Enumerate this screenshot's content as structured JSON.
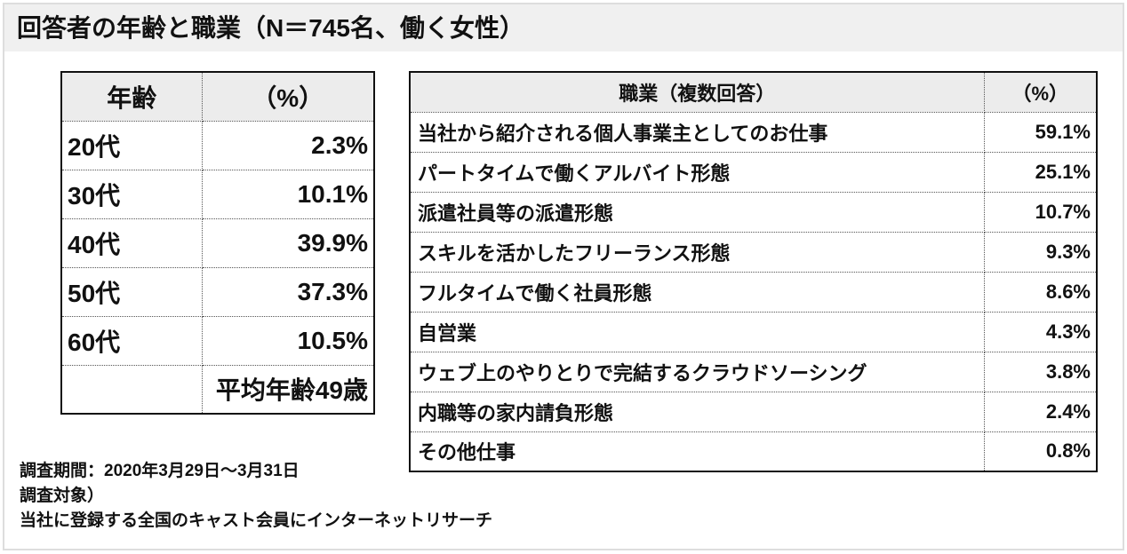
{
  "title": "回答者の年齢と職業（N＝745名、働く女性）",
  "age_table": {
    "headers": [
      "年齢",
      "（%）"
    ],
    "rows": [
      {
        "label": "20代",
        "value": "2.3%"
      },
      {
        "label": "30代",
        "value": "10.1%"
      },
      {
        "label": "40代",
        "value": "39.9%"
      },
      {
        "label": "50代",
        "value": "37.3%"
      },
      {
        "label": "60代",
        "value": "10.5%"
      }
    ],
    "average": "平均年齢49歳"
  },
  "job_table": {
    "headers": [
      "職業（複数回答）",
      "（%）"
    ],
    "rows": [
      {
        "label": "当社から紹介される個人事業主としてのお仕事",
        "value": "59.1%"
      },
      {
        "label": "パートタイムで働くアルバイト形態",
        "value": "25.1%"
      },
      {
        "label": "派遣社員等の派遣形態",
        "value": "10.7%"
      },
      {
        "label": "スキルを活かしたフリーランス形態",
        "value": "9.3%"
      },
      {
        "label": "フルタイムで働く社員形態",
        "value": "8.6%"
      },
      {
        "label": "自営業",
        "value": "4.3%"
      },
      {
        "label": "ウェブ上のやりとりで完結するクラウドソーシング",
        "value": "3.8%"
      },
      {
        "label": "内職等の家内請負形態",
        "value": "2.4%"
      },
      {
        "label": "その他仕事",
        "value": "0.8%"
      }
    ]
  },
  "notes": [
    "調査期間：2020年3月29日～3月31日",
    "調査対象）",
    "当社に登録する全国のキャスト会員にインターネットリサーチ"
  ]
}
